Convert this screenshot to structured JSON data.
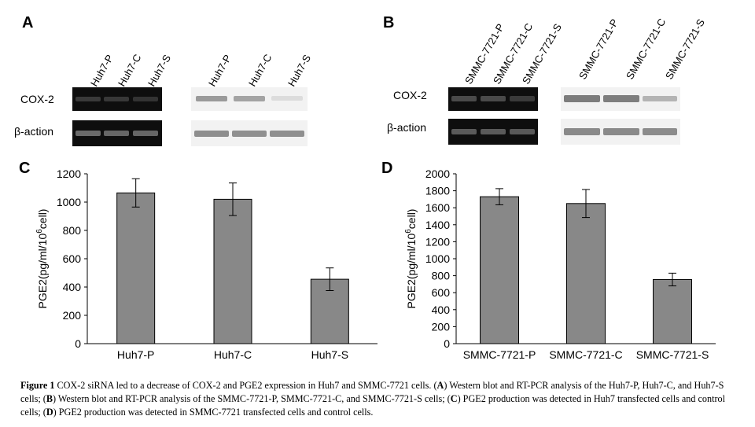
{
  "panel_a": {
    "letter": "A",
    "rt_pcr_lanes": [
      "Huh7-P",
      "Huh7-C",
      "Huh7-S"
    ],
    "western_lanes": [
      "Huh7-P",
      "Huh7-C",
      "Huh7-S"
    ],
    "rows": [
      "COX-2",
      "β-action"
    ],
    "cox2_western_intensity": [
      0.55,
      0.55,
      0.15
    ]
  },
  "panel_b": {
    "letter": "B",
    "rt_pcr_lanes": [
      "SMMC-7721-P",
      "SMMC-7721-C",
      "SMMC-7721-S"
    ],
    "western_lanes": [
      "SMMC-7721-P",
      "SMMC-7721-C",
      "SMMC-7721-S"
    ],
    "rows": [
      "COX-2",
      "β-action"
    ],
    "cox2_western_intensity": [
      0.75,
      0.75,
      0.4
    ]
  },
  "chart_data": [
    {
      "panel": "C",
      "type": "bar",
      "categories": [
        "Huh7-P",
        "Huh7-C",
        "Huh7-S"
      ],
      "values": [
        1065,
        1020,
        455
      ],
      "errors": [
        100,
        115,
        80
      ],
      "ylabel": "PGE2(pg/ml/10",
      "ylabel_sup": "6",
      "ylabel_tail": "cell)",
      "ylim": [
        0,
        1200
      ],
      "yticks": [
        0,
        200,
        400,
        600,
        800,
        1000,
        1200
      ],
      "bar_color": "#888888"
    },
    {
      "panel": "D",
      "type": "bar",
      "categories": [
        "SMMC-7721-P",
        "SMMC-7721-C",
        "SMMC-7721-S"
      ],
      "values": [
        1730,
        1650,
        755
      ],
      "errors": [
        95,
        165,
        75
      ],
      "ylabel": "PGE2(pg/ml/10",
      "ylabel_sup": "6",
      "ylabel_tail": "cell)",
      "ylim": [
        0,
        2000
      ],
      "yticks": [
        0,
        200,
        400,
        600,
        800,
        1000,
        1200,
        1400,
        1600,
        1800,
        2000
      ],
      "bar_color": "#888888"
    }
  ],
  "caption": {
    "lead": "Figure 1",
    "text": " COX-2 siRNA led to a decrease of COX-2 and PGE2 expression in Huh7 and SMMC-7721 cells. (",
    "a": "A",
    "t1": ") Western blot and RT-PCR analysis of the Huh7-P, Huh7-C, and Huh7-S cells; (",
    "b": "B",
    "t2": ") Western blot and RT-PCR analysis of the SMMC-7721-P, SMMC-7721-C, and SMMC-7721-S cells; (",
    "c": "C",
    "t3": ") PGE2 production was detected in Huh7 transfected cells and control cells; (",
    "d": "D",
    "t4": ") PGE2 production was detected in SMMC-7721 transfected cells and control cells."
  }
}
